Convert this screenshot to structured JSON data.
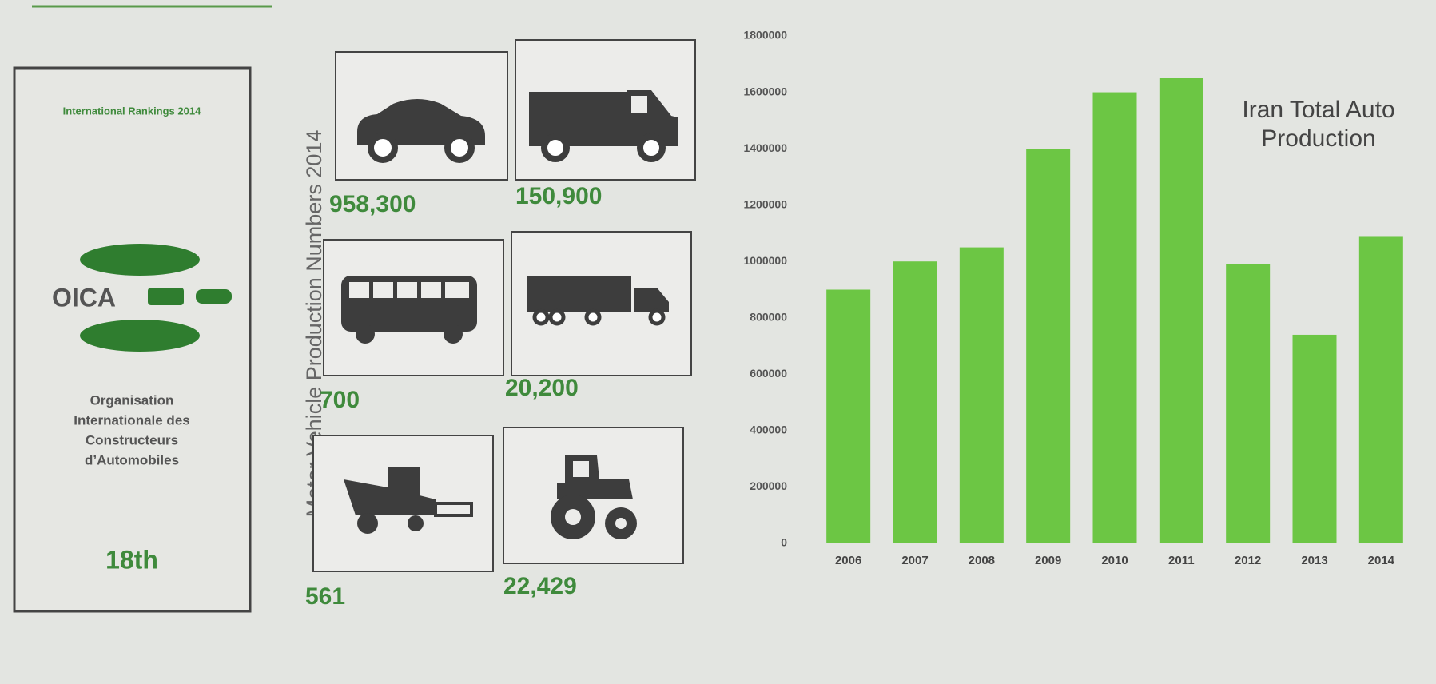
{
  "panel": {
    "heading": "International Rankings 2014",
    "logo": "OICA",
    "organisation": [
      "Organisation",
      "Internationale des",
      "Constructeurs",
      "d’Automobiles"
    ],
    "rank": "18th"
  },
  "vehicles": {
    "label": "Motor Vehicle Production Numbers 2014",
    "items": [
      {
        "kind": "car",
        "value": "958,300"
      },
      {
        "kind": "van",
        "value": "150,900"
      },
      {
        "kind": "bus",
        "value": "700"
      },
      {
        "kind": "truck",
        "value": "20,200"
      },
      {
        "kind": "harvester",
        "value": "561"
      },
      {
        "kind": "tractor",
        "value": "22,429"
      }
    ]
  },
  "chart_data": {
    "type": "bar",
    "title": "Iran Total Auto Production",
    "categories": [
      "2006",
      "2007",
      "2008",
      "2009",
      "2010",
      "2011",
      "2012",
      "2013",
      "2014"
    ],
    "values": [
      900000,
      1000000,
      1050000,
      1400000,
      1600000,
      1650000,
      990000,
      740000,
      1090000
    ],
    "color": "#6cc644",
    "ylim": [
      0,
      1800000
    ],
    "yticks": [
      0,
      200000,
      400000,
      600000,
      800000,
      1000000,
      1200000,
      1400000,
      1600000,
      1800000
    ],
    "grid": false
  }
}
